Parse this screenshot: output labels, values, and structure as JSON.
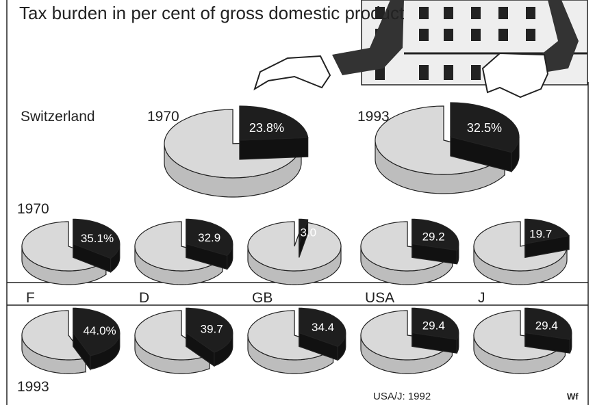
{
  "title": "Tax burden in per cent of gross domestic product",
  "note": "USA/J: 1992",
  "credit": "Wf",
  "chart_data": [
    {
      "type": "pie",
      "title": "Switzerland",
      "categories": [
        "1970",
        "1993"
      ],
      "values": [
        23.8,
        32.5
      ],
      "value_labels": [
        "23.8%",
        "32.5%"
      ],
      "color": "#1e1e1e"
    },
    {
      "type": "pie",
      "categories": [
        "F",
        "D",
        "GB",
        "USA",
        "J"
      ],
      "color": "#1e1e1e",
      "series": [
        {
          "name": "1970",
          "values": [
            35.1,
            32.9,
            3,
            29.2,
            19.7
          ],
          "value_labels": [
            "35.1%",
            "32.9",
            "3.0",
            "29.2",
            "19.7"
          ]
        },
        {
          "name": "1993",
          "values": [
            44,
            39.7,
            34.4,
            29.4,
            29.4
          ],
          "value_labels": [
            "44.0%",
            "39.7",
            "34.4",
            "29.4",
            "29.4"
          ]
        }
      ]
    }
  ]
}
